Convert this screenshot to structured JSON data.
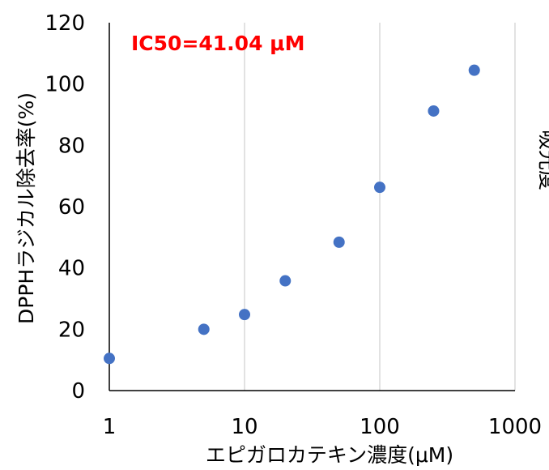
{
  "chart_data": {
    "type": "scatter",
    "xscale": "log",
    "xlim": [
      1,
      1000
    ],
    "ylim": [
      0,
      120
    ],
    "xticks": [
      1,
      10,
      100,
      1000
    ],
    "yticks": [
      0,
      20,
      40,
      60,
      80,
      100,
      120
    ],
    "xlabel": "エピガロカテキン濃度(μM)",
    "ylabel": "DPPHラジカル除去率(%)",
    "annotation": "IC50=41.04 μM",
    "annotation_color": "#ff0000",
    "point_color": "#4472c4",
    "grid": "vertical",
    "series": [
      {
        "x": [
          1,
          5,
          10,
          20,
          50,
          100,
          250,
          500
        ],
        "y": [
          10.5,
          20,
          24.8,
          35.8,
          48.4,
          66.3,
          91.2,
          104.5
        ]
      }
    ]
  },
  "side_fragment": "吸光度"
}
